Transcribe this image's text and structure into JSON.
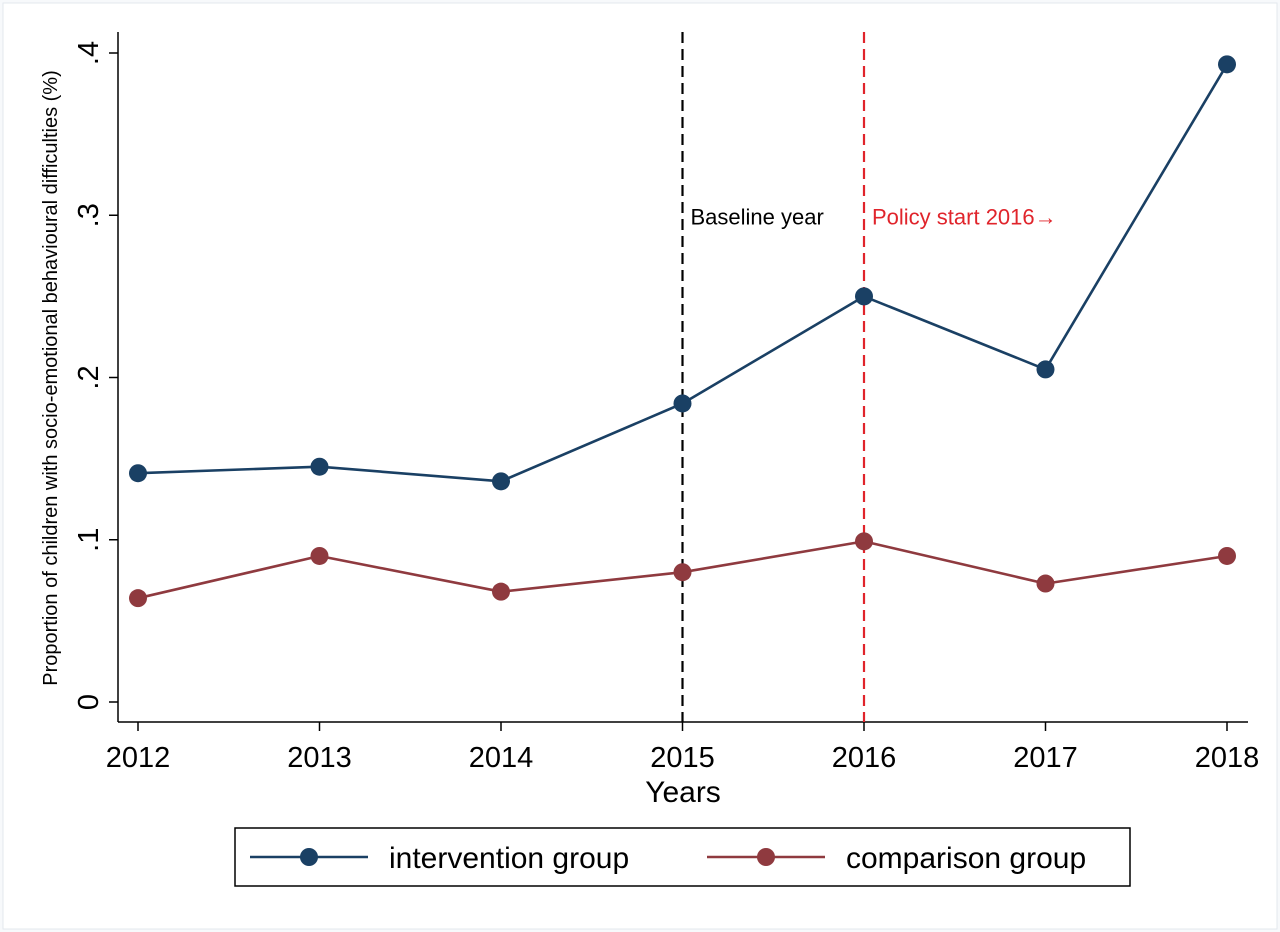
{
  "chart_data": {
    "type": "line",
    "title": "",
    "xlabel": "Years",
    "ylabel": "Proportion of children with socio-emotional behavioural difficulties (%)",
    "x": [
      2012,
      2013,
      2014,
      2015,
      2016,
      2017,
      2018
    ],
    "xlim": [
      2012,
      2018
    ],
    "ylim": [
      0,
      0.4
    ],
    "y_ticks": [
      0,
      0.1,
      0.2,
      0.3,
      0.4
    ],
    "y_tick_labels": [
      "0",
      ".1",
      ".2",
      ".3",
      ".4"
    ],
    "x_tick_labels": [
      "2012",
      "2013",
      "2014",
      "2015",
      "2016",
      "2017",
      "2018"
    ],
    "grid": false,
    "legend_position": "bottom",
    "series": [
      {
        "name": "intervention group",
        "color": "#1a4064",
        "marker": "circle",
        "values": [
          0.141,
          0.145,
          0.136,
          0.184,
          0.25,
          0.205,
          0.393
        ]
      },
      {
        "name": "comparison group",
        "color": "#8f3a3f",
        "marker": "circle",
        "values": [
          0.064,
          0.09,
          0.068,
          0.08,
          0.099,
          0.073,
          0.09
        ]
      }
    ],
    "reference_lines": [
      {
        "x": 2015,
        "label": "Baseline year",
        "color": "#000000",
        "style": "dashed",
        "label_side": "right"
      },
      {
        "x": 2016,
        "label": "Policy start 2016→",
        "color": "#e0242b",
        "style": "dashed",
        "label_side": "right"
      }
    ]
  }
}
